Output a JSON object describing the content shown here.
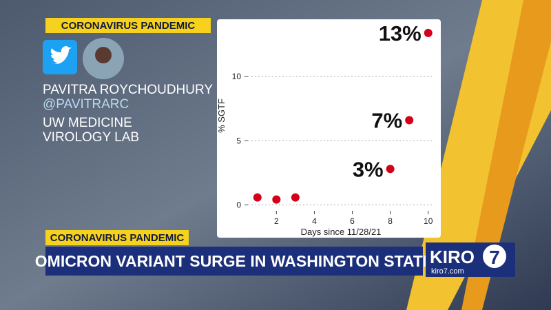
{
  "header": {
    "tag": "CORONAVIRUS PANDEMIC"
  },
  "source": {
    "name": "PAVITRA ROYCHOUDHURY",
    "handle": "@PAVITRARC",
    "affiliation": [
      "UW MEDICINE",
      "VIROLOGY LAB"
    ]
  },
  "chart_data": {
    "type": "scatter",
    "xlabel": "Days since 11/28/21",
    "ylabel": "% SGTF",
    "x": [
      1,
      2,
      3,
      8,
      9,
      10
    ],
    "values": [
      0.58,
      0.42,
      0.58,
      2.8,
      6.6,
      13.4
    ],
    "value_labels": [
      null,
      null,
      null,
      "3%",
      "7%",
      "13%"
    ],
    "color": "#d40019",
    "xlim": [
      0.5,
      10.3
    ],
    "ylim": [
      -0.3,
      14.2
    ],
    "xticks": [
      2,
      4,
      6,
      8,
      10
    ],
    "yticks": [
      0,
      5,
      10
    ],
    "grid": true
  },
  "lower_third": {
    "tag": "CORONAVIRUS PANDEMIC",
    "headline": "OMICRON VARIANT SURGE IN WASHINGTON STATE"
  },
  "logo": {
    "brand": "KIRO",
    "number": "7",
    "website": "kiro7.com"
  }
}
